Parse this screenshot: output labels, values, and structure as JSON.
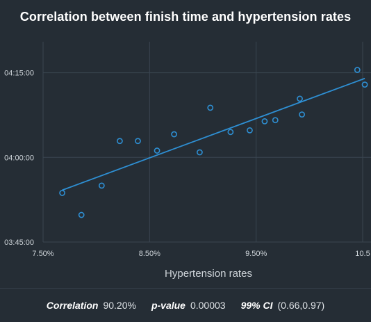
{
  "chart_data": {
    "type": "scatter",
    "title": "Correlation between finish time and hypertension rates",
    "xlabel": "Hypertension rates",
    "ylabel": "",
    "x_ticks": [
      "7.50%",
      "8.50%",
      "9.50%",
      "10.5"
    ],
    "x_tick_values": [
      7.5,
      8.5,
      9.5,
      10.5
    ],
    "y_ticks": [
      "04:15:00",
      "04:00:00",
      "03:45:00"
    ],
    "y_tick_values": [
      255,
      240,
      225
    ],
    "xlim": [
      7.5,
      10.5
    ],
    "ylim": [
      225,
      260.5
    ],
    "y_unit": "minutes (h:mm:ss)",
    "grid": true,
    "legend": "none",
    "points": [
      {
        "x": 7.68,
        "y": 233.7
      },
      {
        "x": 7.86,
        "y": 229.8
      },
      {
        "x": 8.05,
        "y": 235.0
      },
      {
        "x": 8.22,
        "y": 242.9
      },
      {
        "x": 8.39,
        "y": 242.9
      },
      {
        "x": 8.57,
        "y": 241.2
      },
      {
        "x": 8.73,
        "y": 244.1
      },
      {
        "x": 8.97,
        "y": 240.9
      },
      {
        "x": 9.07,
        "y": 248.8
      },
      {
        "x": 9.26,
        "y": 244.5
      },
      {
        "x": 9.44,
        "y": 244.8
      },
      {
        "x": 9.58,
        "y": 246.4
      },
      {
        "x": 9.68,
        "y": 246.6
      },
      {
        "x": 9.91,
        "y": 250.4
      },
      {
        "x": 9.93,
        "y": 247.6
      },
      {
        "x": 10.45,
        "y": 255.5
      },
      {
        "x": 10.52,
        "y": 252.9
      }
    ],
    "trendline": [
      {
        "x": 7.68,
        "y": 234.2
      },
      {
        "x": 10.52,
        "y": 254.0
      }
    ],
    "colors": {
      "points": "#2e8fd3",
      "line": "#2e8fd3",
      "grid": "#3a4550",
      "background": "#252d35"
    }
  },
  "stats": {
    "correlation_label": "Correlation",
    "correlation_value": "90.20%",
    "pvalue_label": "p-value",
    "pvalue_value": "0.00003",
    "ci_label": "99% CI",
    "ci_value": "(0.66,0.97)"
  }
}
